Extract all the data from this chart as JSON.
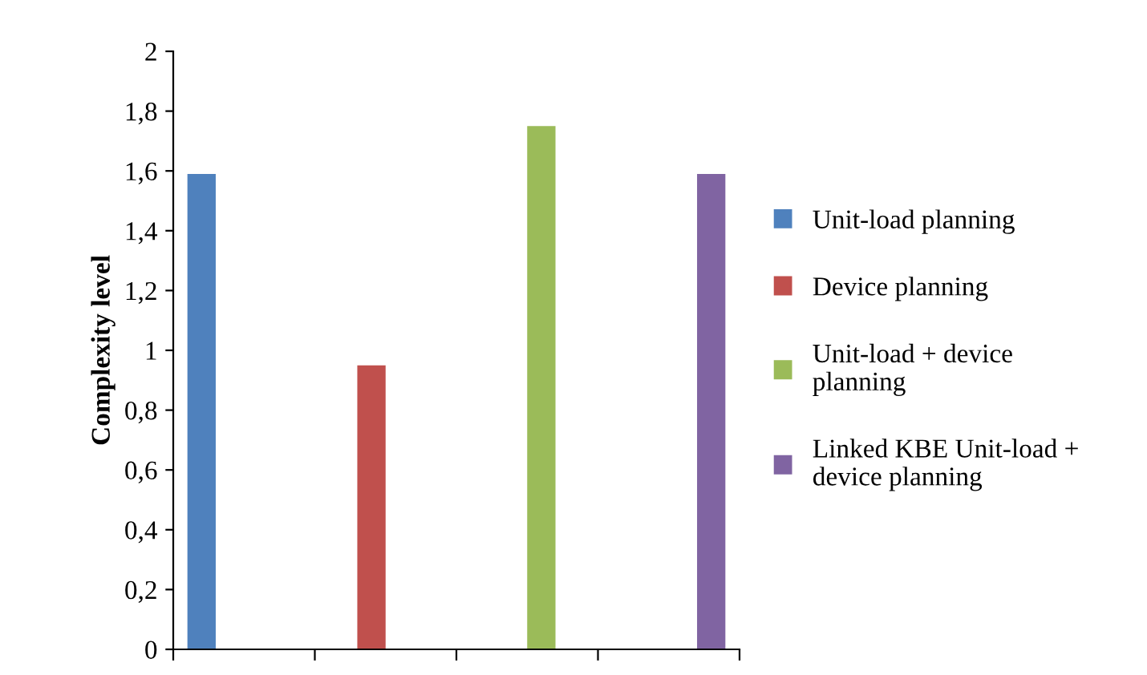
{
  "chart_data": {
    "type": "bar",
    "ylabel": "Complexity level",
    "categories": [
      null,
      null,
      null,
      null
    ],
    "series": [
      {
        "name": "Unit-load planning",
        "color": "#4f81bd",
        "values": [
          1.59,
          null,
          null,
          null
        ]
      },
      {
        "name": "Device planning",
        "color": "#c0504d",
        "values": [
          null,
          0.95,
          null,
          null
        ]
      },
      {
        "name": "Unit-load + device planning",
        "color": "#9bbb59",
        "values": [
          null,
          null,
          1.75,
          null
        ]
      },
      {
        "name": "Linked KBE Unit-load + device planning",
        "color": "#8064a2",
        "values": [
          null,
          null,
          null,
          1.59
        ]
      }
    ],
    "ylim": [
      0,
      2
    ],
    "yticks": [
      0,
      {
        "value": 0.2,
        "label": "0,2"
      },
      {
        "value": 0.4,
        "label": "0,4"
      },
      {
        "value": 0.6,
        "label": "0,6"
      },
      {
        "value": 0.8,
        "label": "0,8"
      },
      1,
      {
        "value": 1.2,
        "label": "1,2"
      },
      {
        "value": 1.4,
        "label": "1,4"
      },
      {
        "value": 1.6,
        "label": "1,6"
      },
      {
        "value": 1.8,
        "label": "1,8"
      },
      2
    ],
    "grid": false,
    "legend": "right"
  }
}
